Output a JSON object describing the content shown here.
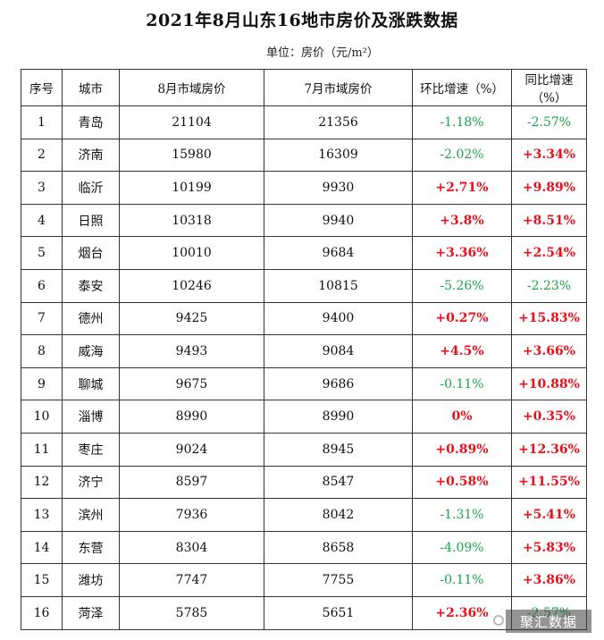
{
  "title": "2021年8月山东16地市房价及涨跌数据",
  "unit": "单位：房价（元/m²）",
  "headers": [
    "序号",
    "城市",
    "8月市域房价",
    "7月市域房价",
    "环比增速（%）",
    "同比增速（%）"
  ],
  "rows": [
    {
      "no": "1",
      "city": "青岛",
      "aug": "21104",
      "jul": "21356",
      "mom": "-1.18%",
      "yoy": "-2.57%"
    },
    {
      "no": "2",
      "city": "济南",
      "aug": "15980",
      "jul": "16309",
      "mom": "-2.02%",
      "yoy": "+3.34%"
    },
    {
      "no": "3",
      "city": "临沂",
      "aug": "10199",
      "jul": "9930",
      "mom": "+2.71%",
      "yoy": "+9.89%"
    },
    {
      "no": "4",
      "city": "日照",
      "aug": "10318",
      "jul": "9940",
      "mom": "+3.8%",
      "yoy": "+8.51%"
    },
    {
      "no": "5",
      "city": "烟台",
      "aug": "10010",
      "jul": "9684",
      "mom": "+3.36%",
      "yoy": "+2.54%"
    },
    {
      "no": "6",
      "city": "泰安",
      "aug": "10246",
      "jul": "10815",
      "mom": "-5.26%",
      "yoy": "-2.23%"
    },
    {
      "no": "7",
      "city": "德州",
      "aug": "9425",
      "jul": "9400",
      "mom": "+0.27%",
      "yoy": "+15.83%"
    },
    {
      "no": "8",
      "city": "威海",
      "aug": "9493",
      "jul": "9084",
      "mom": "+4.5%",
      "yoy": "+3.66%"
    },
    {
      "no": "9",
      "city": "聊城",
      "aug": "9675",
      "jul": "9686",
      "mom": "-0.11%",
      "yoy": "+10.88%"
    },
    {
      "no": "10",
      "city": "淄博",
      "aug": "8990",
      "jul": "8990",
      "mom": "0%",
      "yoy": "+0.35%"
    },
    {
      "no": "11",
      "city": "枣庄",
      "aug": "9024",
      "jul": "8945",
      "mom": "+0.89%",
      "yoy": "+12.36%"
    },
    {
      "no": "12",
      "city": "济宁",
      "aug": "8597",
      "jul": "8547",
      "mom": "+0.58%",
      "yoy": "+11.55%"
    },
    {
      "no": "13",
      "city": "滨州",
      "aug": "7936",
      "jul": "8042",
      "mom": "-1.31%",
      "yoy": "+5.41%"
    },
    {
      "no": "14",
      "city": "东营",
      "aug": "8304",
      "jul": "8658",
      "mom": "-4.09%",
      "yoy": "+5.83%"
    },
    {
      "no": "15",
      "city": "潍坊",
      "aug": "7747",
      "jul": "7755",
      "mom": "-0.11%",
      "yoy": "+3.86%"
    },
    {
      "no": "16",
      "city": "菏泽",
      "aug": "5785",
      "jul": "5651",
      "mom": "+2.36%",
      "yoy": "-2.57%"
    }
  ],
  "colors": {
    "increase": "#e8101a",
    "decrease": "#19a44a"
  },
  "watermark": "聚汇数据"
}
